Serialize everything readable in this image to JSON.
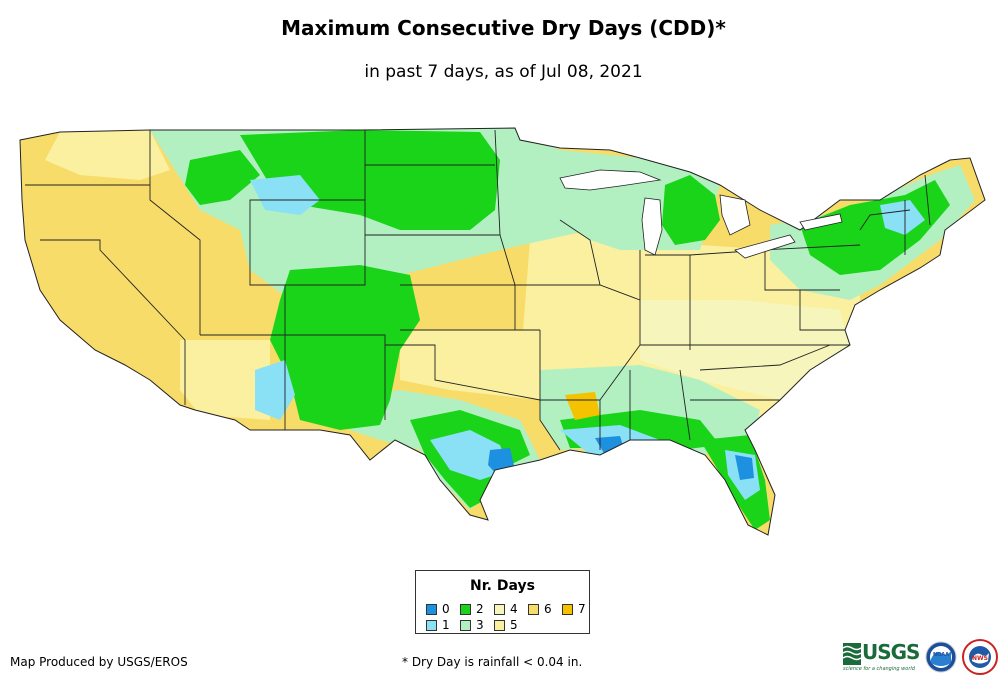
{
  "header": {
    "title": "Maximum Consecutive Dry Days (CDD)*",
    "subtitle": "in past 7 days, as of Jul 08, 2021"
  },
  "legend": {
    "title": "Nr. Days",
    "items": [
      {
        "label": "0",
        "color": "#1e90e0"
      },
      {
        "label": "1",
        "color": "#8ae0f5"
      },
      {
        "label": "2",
        "color": "#19d419"
      },
      {
        "label": "3",
        "color": "#b2f0c2"
      },
      {
        "label": "4",
        "color": "#f5f5bc"
      },
      {
        "label": "5",
        "color": "#faf0a0"
      },
      {
        "label": "6",
        "color": "#f8dc6a"
      },
      {
        "label": "7",
        "color": "#f5c200"
      }
    ]
  },
  "footer": {
    "credit": "Map Produced by USGS/EROS",
    "footnote": "* Dry Day is rainfall < 0.04 in."
  },
  "logos": {
    "usgs": {
      "text": "USGS",
      "tagline": "science for a changing world",
      "color": "#1b6b3a"
    },
    "noaa": {
      "text": "NOAA"
    },
    "nws": {
      "text": "NWS"
    }
  }
}
